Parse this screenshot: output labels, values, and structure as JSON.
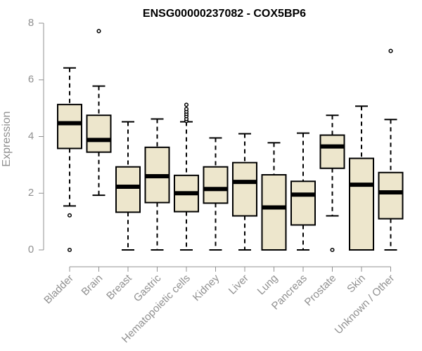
{
  "chart_data": {
    "type": "box",
    "title": "ENSG00000237082 - COX5BP6",
    "xlabel": "",
    "ylabel": "Expression",
    "ylim": [
      0,
      8
    ],
    "yticks": [
      "0",
      "2",
      "4",
      "6",
      "8"
    ],
    "grid": false,
    "colors": {
      "box_fill": "#ede6cc",
      "stroke": "#000000",
      "axis": "#909090"
    },
    "categories": [
      "Bladder",
      "Brain",
      "Breast",
      "Gastric",
      "Hematopoietic cells",
      "Kidney",
      "Liver",
      "Lung",
      "Pancreas",
      "Prostate",
      "Skin",
      "Unknown / Other"
    ],
    "boxes": [
      {
        "category": "Bladder",
        "whisker_low": 1.55,
        "q1": 3.58,
        "median": 4.47,
        "q3": 5.13,
        "whisker_high": 6.42,
        "outliers": [
          1.22,
          0.0
        ]
      },
      {
        "category": "Brain",
        "whisker_low": 1.93,
        "q1": 3.45,
        "median": 3.88,
        "q3": 4.75,
        "whisker_high": 5.78,
        "outliers": [
          7.72
        ]
      },
      {
        "category": "Breast",
        "whisker_low": 0.0,
        "q1": 1.33,
        "median": 2.23,
        "q3": 2.93,
        "whisker_high": 4.52,
        "outliers": []
      },
      {
        "category": "Gastric",
        "whisker_low": 0.0,
        "q1": 1.67,
        "median": 2.6,
        "q3": 3.62,
        "whisker_high": 4.62,
        "outliers": []
      },
      {
        "category": "Hematopoietic cells",
        "whisker_low": 0.0,
        "q1": 1.35,
        "median": 2.0,
        "q3": 2.63,
        "whisker_high": 4.52,
        "outliers": [
          4.55,
          4.62,
          4.72,
          4.8,
          4.88,
          4.97,
          5.12
        ]
      },
      {
        "category": "Kidney",
        "whisker_low": 0.0,
        "q1": 1.65,
        "median": 2.15,
        "q3": 2.93,
        "whisker_high": 3.95,
        "outliers": []
      },
      {
        "category": "Liver",
        "whisker_low": 0.0,
        "q1": 1.2,
        "median": 2.4,
        "q3": 3.08,
        "whisker_high": 4.1,
        "outliers": []
      },
      {
        "category": "Lung",
        "whisker_low": 0.0,
        "q1": 0.0,
        "median": 1.5,
        "q3": 2.65,
        "whisker_high": 3.78,
        "outliers": []
      },
      {
        "category": "Pancreas",
        "whisker_low": 0.0,
        "q1": 0.88,
        "median": 1.95,
        "q3": 2.42,
        "whisker_high": 4.12,
        "outliers": []
      },
      {
        "category": "Prostate",
        "whisker_low": 1.2,
        "q1": 2.88,
        "median": 3.65,
        "q3": 4.05,
        "whisker_high": 4.75,
        "outliers": [
          0.0
        ]
      },
      {
        "category": "Skin",
        "whisker_low": 0.0,
        "q1": 0.0,
        "median": 2.3,
        "q3": 3.23,
        "whisker_high": 5.07,
        "outliers": []
      },
      {
        "category": "Unknown / Other",
        "whisker_low": 0.0,
        "q1": 1.1,
        "median": 2.03,
        "q3": 2.73,
        "whisker_high": 4.6,
        "outliers": [
          7.02
        ]
      }
    ]
  }
}
